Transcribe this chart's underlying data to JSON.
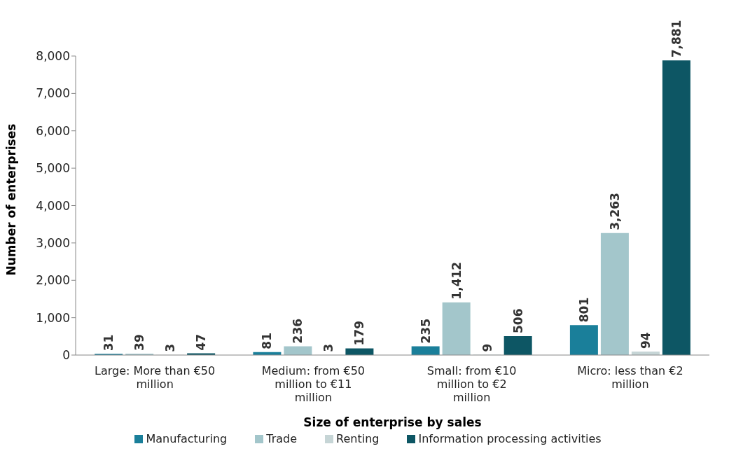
{
  "chart_data": {
    "type": "bar",
    "xlabel": "Size of enterprise by sales",
    "ylabel": "Number of enterprises",
    "categories": [
      "Large: More than €50 million",
      "Medium: from €50 million to €11 million",
      "Small: from €10 million to €2 million",
      "Micro: less than €2 million"
    ],
    "series": [
      {
        "name": "Manufacturing",
        "color": "#1a7f9a",
        "values": [
          31,
          81,
          235,
          801
        ],
        "value_labels": [
          "31",
          "81",
          "235",
          "801"
        ]
      },
      {
        "name": "Trade",
        "color": "#a3c6cb",
        "values": [
          39,
          236,
          1412,
          3263
        ],
        "value_labels": [
          "39",
          "236",
          "1,412",
          "3,263"
        ]
      },
      {
        "name": "Renting",
        "color": "#c6d5d6",
        "values": [
          3,
          3,
          9,
          94
        ],
        "value_labels": [
          "3",
          "3",
          "9",
          "94"
        ]
      },
      {
        "name": "Information processing activities",
        "color": "#0d5664",
        "values": [
          47,
          179,
          506,
          7881
        ],
        "value_labels": [
          "47",
          "179",
          "506",
          "7,881"
        ]
      }
    ],
    "ylim": [
      0,
      8000
    ],
    "yticks": [
      0,
      {
        "value": 1000,
        "label": "1,000"
      },
      {
        "value": 2000,
        "label": "2,000"
      },
      {
        "value": 3000,
        "label": "3,000"
      },
      {
        "value": 4000,
        "label": "4,000"
      },
      {
        "value": 5000,
        "label": "5,000"
      },
      {
        "value": 6000,
        "label": "6,000"
      },
      {
        "value": 7000,
        "label": "7,000"
      },
      {
        "value": 8000,
        "label": "8,000"
      }
    ],
    "grid": false,
    "legend": "bottom"
  }
}
